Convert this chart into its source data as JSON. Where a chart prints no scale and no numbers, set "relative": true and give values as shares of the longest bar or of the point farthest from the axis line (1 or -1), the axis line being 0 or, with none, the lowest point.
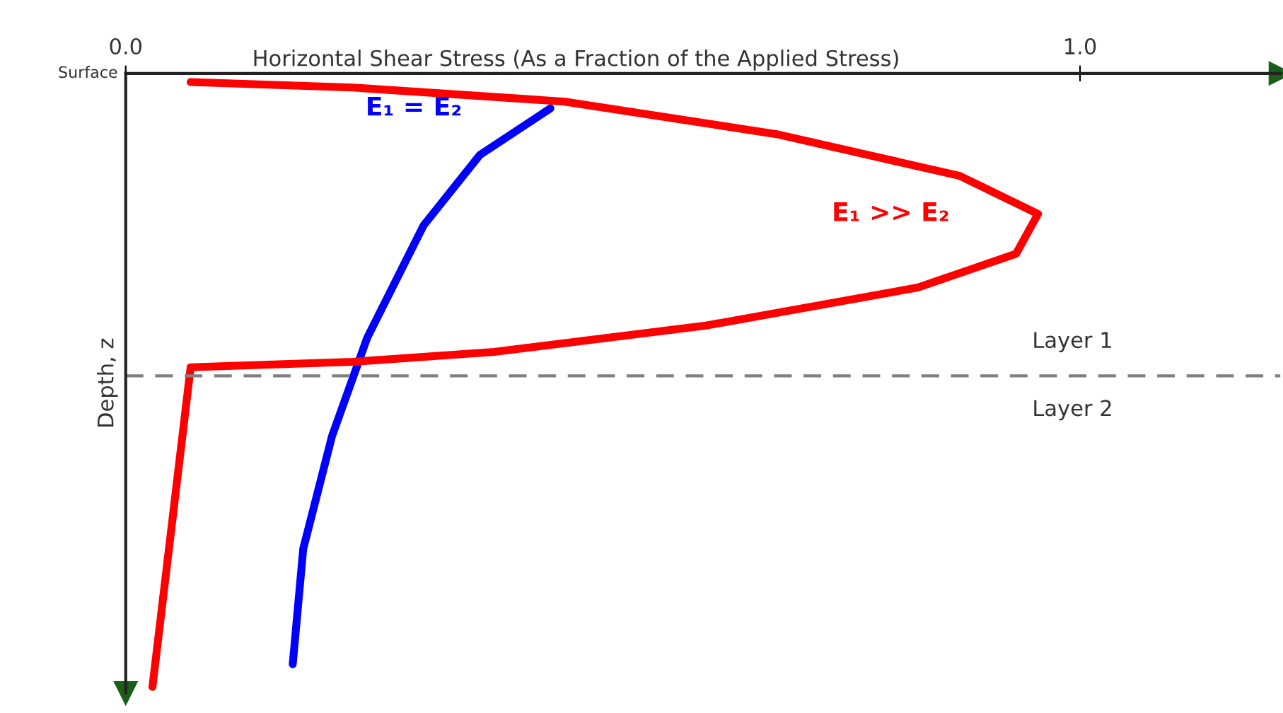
{
  "chart_data": {
    "type": "line",
    "relative": true,
    "xlabel": "Horizontal Shear Stress (As a Fraction of the Applied Stress)",
    "ylabel": "Depth, z",
    "xlim": [
      0,
      1.21
    ],
    "xticks": [
      {
        "value": 0,
        "label": "0.0"
      },
      {
        "value": 1,
        "label": "1.0"
      }
    ],
    "series": [
      {
        "name": "E₁ = E₂",
        "color": "#0000ff",
        "x": [
          0.445,
          0.371,
          0.312,
          0.253,
          0.216,
          0.186,
          0.175
        ],
        "values": [
          -0.057,
          -0.133,
          -0.248,
          -0.431,
          -0.592,
          -0.775,
          -0.963
        ]
      },
      {
        "name": "E₁ >> E₂",
        "color": "#ff0000",
        "x": [
          0.068,
          0.238,
          0.46,
          0.682,
          0.874,
          0.956,
          0.933,
          0.83,
          0.608,
          0.386,
          0.238,
          0.068,
          0.028
        ],
        "values": [
          -0.014,
          -0.023,
          -0.046,
          -0.099,
          -0.167,
          -0.229,
          -0.294,
          -0.349,
          -0.411,
          -0.454,
          -0.47,
          -0.479,
          -1.0
        ]
      }
    ],
    "ref_lines": [
      {
        "axis": "y",
        "value": -0.493,
        "color": "#808080",
        "line_style": "dashed"
      }
    ],
    "annotations": [
      "Surface",
      "Layer 1",
      "Layer 2"
    ],
    "grid": false
  }
}
